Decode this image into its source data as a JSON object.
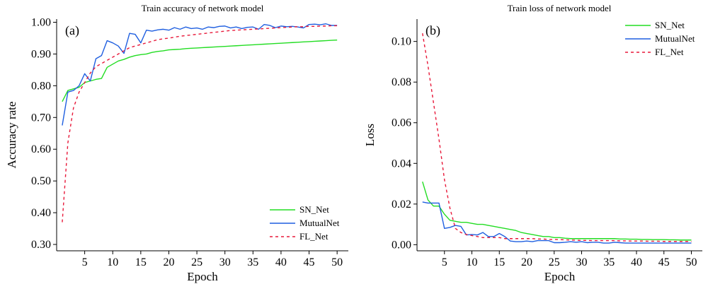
{
  "chart_data": [
    {
      "type": "line",
      "panel_label": "(a)",
      "title": "Train accuracy of network model",
      "xlabel": "Epoch",
      "ylabel": "Accuracy rate",
      "xlim": [
        0,
        52
      ],
      "ylim": [
        0.28,
        1.01
      ],
      "xticks": [
        5,
        10,
        15,
        20,
        25,
        30,
        35,
        40,
        45,
        50
      ],
      "xtick_labels": [
        "5",
        "10",
        "15",
        "20",
        "25",
        "30",
        "35",
        "40",
        "45",
        "50"
      ],
      "yticks": [
        0.3,
        0.4,
        0.5,
        0.6,
        0.7,
        0.8,
        0.9,
        1.0
      ],
      "ytick_labels": [
        "0.30",
        "0.40",
        "0.50",
        "0.60",
        "0.70",
        "0.80",
        "0.90",
        "1.00"
      ],
      "legend_position": "bottom-right",
      "x": [
        1,
        2,
        3,
        4,
        5,
        6,
        7,
        8,
        9,
        10,
        11,
        12,
        13,
        14,
        15,
        16,
        17,
        18,
        19,
        20,
        21,
        22,
        23,
        24,
        25,
        26,
        27,
        28,
        29,
        30,
        31,
        32,
        33,
        34,
        35,
        36,
        37,
        38,
        39,
        40,
        41,
        42,
        43,
        44,
        45,
        46,
        47,
        48,
        49,
        50
      ],
      "series": [
        {
          "name": "SN_Net",
          "color": "#22dd22",
          "dash": "solid",
          "values": [
            0.75,
            0.785,
            0.79,
            0.795,
            0.81,
            0.815,
            0.82,
            0.823,
            0.858,
            0.868,
            0.878,
            0.883,
            0.89,
            0.895,
            0.898,
            0.9,
            0.905,
            0.908,
            0.91,
            0.913,
            0.914,
            0.915,
            0.917,
            0.918,
            0.919,
            0.92,
            0.921,
            0.922,
            0.923,
            0.924,
            0.925,
            0.926,
            0.927,
            0.928,
            0.929,
            0.93,
            0.931,
            0.932,
            0.933,
            0.934,
            0.935,
            0.936,
            0.937,
            0.938,
            0.939,
            0.94,
            0.941,
            0.942,
            0.943,
            0.944
          ]
        },
        {
          "name": "MutualNet",
          "color": "#1f5fe0",
          "dash": "solid",
          "values": [
            0.675,
            0.78,
            0.785,
            0.8,
            0.838,
            0.815,
            0.885,
            0.895,
            0.942,
            0.935,
            0.925,
            0.902,
            0.965,
            0.962,
            0.935,
            0.975,
            0.972,
            0.976,
            0.978,
            0.975,
            0.983,
            0.978,
            0.985,
            0.98,
            0.982,
            0.978,
            0.985,
            0.983,
            0.987,
            0.988,
            0.982,
            0.985,
            0.98,
            0.984,
            0.985,
            0.978,
            0.993,
            0.99,
            0.983,
            0.988,
            0.986,
            0.987,
            0.985,
            0.982,
            0.993,
            0.994,
            0.992,
            0.995,
            0.99,
            0.99
          ]
        },
        {
          "name": "FL_Net",
          "color": "#e8193a",
          "dash": "dashed",
          "values": [
            0.37,
            0.62,
            0.73,
            0.78,
            0.81,
            0.84,
            0.86,
            0.87,
            0.88,
            0.89,
            0.9,
            0.91,
            0.92,
            0.925,
            0.93,
            0.935,
            0.94,
            0.945,
            0.948,
            0.95,
            0.953,
            0.956,
            0.958,
            0.96,
            0.962,
            0.964,
            0.966,
            0.968,
            0.97,
            0.972,
            0.974,
            0.975,
            0.976,
            0.977,
            0.978,
            0.979,
            0.98,
            0.981,
            0.982,
            0.983,
            0.984,
            0.985,
            0.986,
            0.986,
            0.987,
            0.987,
            0.988,
            0.988,
            0.989,
            0.989
          ]
        }
      ]
    },
    {
      "type": "line",
      "panel_label": "(b)",
      "title": "Train loss of  network model",
      "xlabel": "Epoch",
      "ylabel": "Loss",
      "xlim": [
        0,
        52
      ],
      "ylim": [
        -0.003,
        0.111
      ],
      "xticks": [
        5,
        10,
        15,
        20,
        25,
        30,
        35,
        40,
        45,
        50
      ],
      "xtick_labels": [
        "5",
        "10",
        "15",
        "20",
        "25",
        "30",
        "35",
        "40",
        "45",
        "50"
      ],
      "yticks": [
        0.0,
        0.02,
        0.04,
        0.06,
        0.08,
        0.1
      ],
      "ytick_labels": [
        "0.00",
        "0.02",
        "0.04",
        "0.06",
        "0.08",
        "0.10"
      ],
      "legend_position": "top-right",
      "x": [
        1,
        2,
        3,
        4,
        5,
        6,
        7,
        8,
        9,
        10,
        11,
        12,
        13,
        14,
        15,
        16,
        17,
        18,
        19,
        20,
        21,
        22,
        23,
        24,
        25,
        26,
        27,
        28,
        29,
        30,
        31,
        32,
        33,
        34,
        35,
        36,
        37,
        38,
        39,
        40,
        41,
        42,
        43,
        44,
        45,
        46,
        47,
        48,
        49,
        50
      ],
      "series": [
        {
          "name": "SN_Net",
          "color": "#22dd22",
          "dash": "solid",
          "values": [
            0.031,
            0.022,
            0.019,
            0.019,
            0.015,
            0.012,
            0.0115,
            0.011,
            0.011,
            0.0105,
            0.01,
            0.01,
            0.0095,
            0.009,
            0.0085,
            0.008,
            0.0075,
            0.007,
            0.006,
            0.0055,
            0.005,
            0.0045,
            0.004,
            0.004,
            0.0035,
            0.0035,
            0.0032,
            0.003,
            0.003,
            0.003,
            0.003,
            0.003,
            0.003,
            0.003,
            0.003,
            0.003,
            0.0028,
            0.0028,
            0.0027,
            0.0027,
            0.0026,
            0.0026,
            0.0025,
            0.0025,
            0.0025,
            0.0024,
            0.0024,
            0.0023,
            0.0023,
            0.0023
          ]
        },
        {
          "name": "MutualNet",
          "color": "#1f5fe0",
          "dash": "solid",
          "values": [
            0.021,
            0.0205,
            0.0205,
            0.0205,
            0.008,
            0.0085,
            0.0095,
            0.009,
            0.0048,
            0.005,
            0.0048,
            0.006,
            0.004,
            0.004,
            0.0055,
            0.004,
            0.0018,
            0.0015,
            0.0015,
            0.0018,
            0.0015,
            0.002,
            0.002,
            0.002,
            0.001,
            0.001,
            0.0012,
            0.0015,
            0.0012,
            0.0015,
            0.001,
            0.0012,
            0.0012,
            0.0008,
            0.0008,
            0.0012,
            0.001,
            0.0008,
            0.0008,
            0.0008,
            0.0008,
            0.0008,
            0.0008,
            0.0008,
            0.0008,
            0.0008,
            0.0008,
            0.0008,
            0.0008,
            0.0008
          ]
        },
        {
          "name": "FL_Net",
          "color": "#e8193a",
          "dash": "dashed",
          "values": [
            0.104,
            0.088,
            0.07,
            0.052,
            0.032,
            0.018,
            0.008,
            0.006,
            0.005,
            0.0045,
            0.004,
            0.0035,
            0.0035,
            0.0035,
            0.0035,
            0.003,
            0.003,
            0.003,
            0.003,
            0.003,
            0.003,
            0.0028,
            0.0028,
            0.0026,
            0.0026,
            0.0025,
            0.0024,
            0.0023,
            0.0022,
            0.0021,
            0.0021,
            0.002,
            0.002,
            0.002,
            0.002,
            0.002,
            0.0019,
            0.0019,
            0.0018,
            0.0018,
            0.0018,
            0.0017,
            0.0017,
            0.0017,
            0.0016,
            0.0016,
            0.0016,
            0.0016,
            0.0016,
            0.0016
          ]
        }
      ]
    }
  ]
}
